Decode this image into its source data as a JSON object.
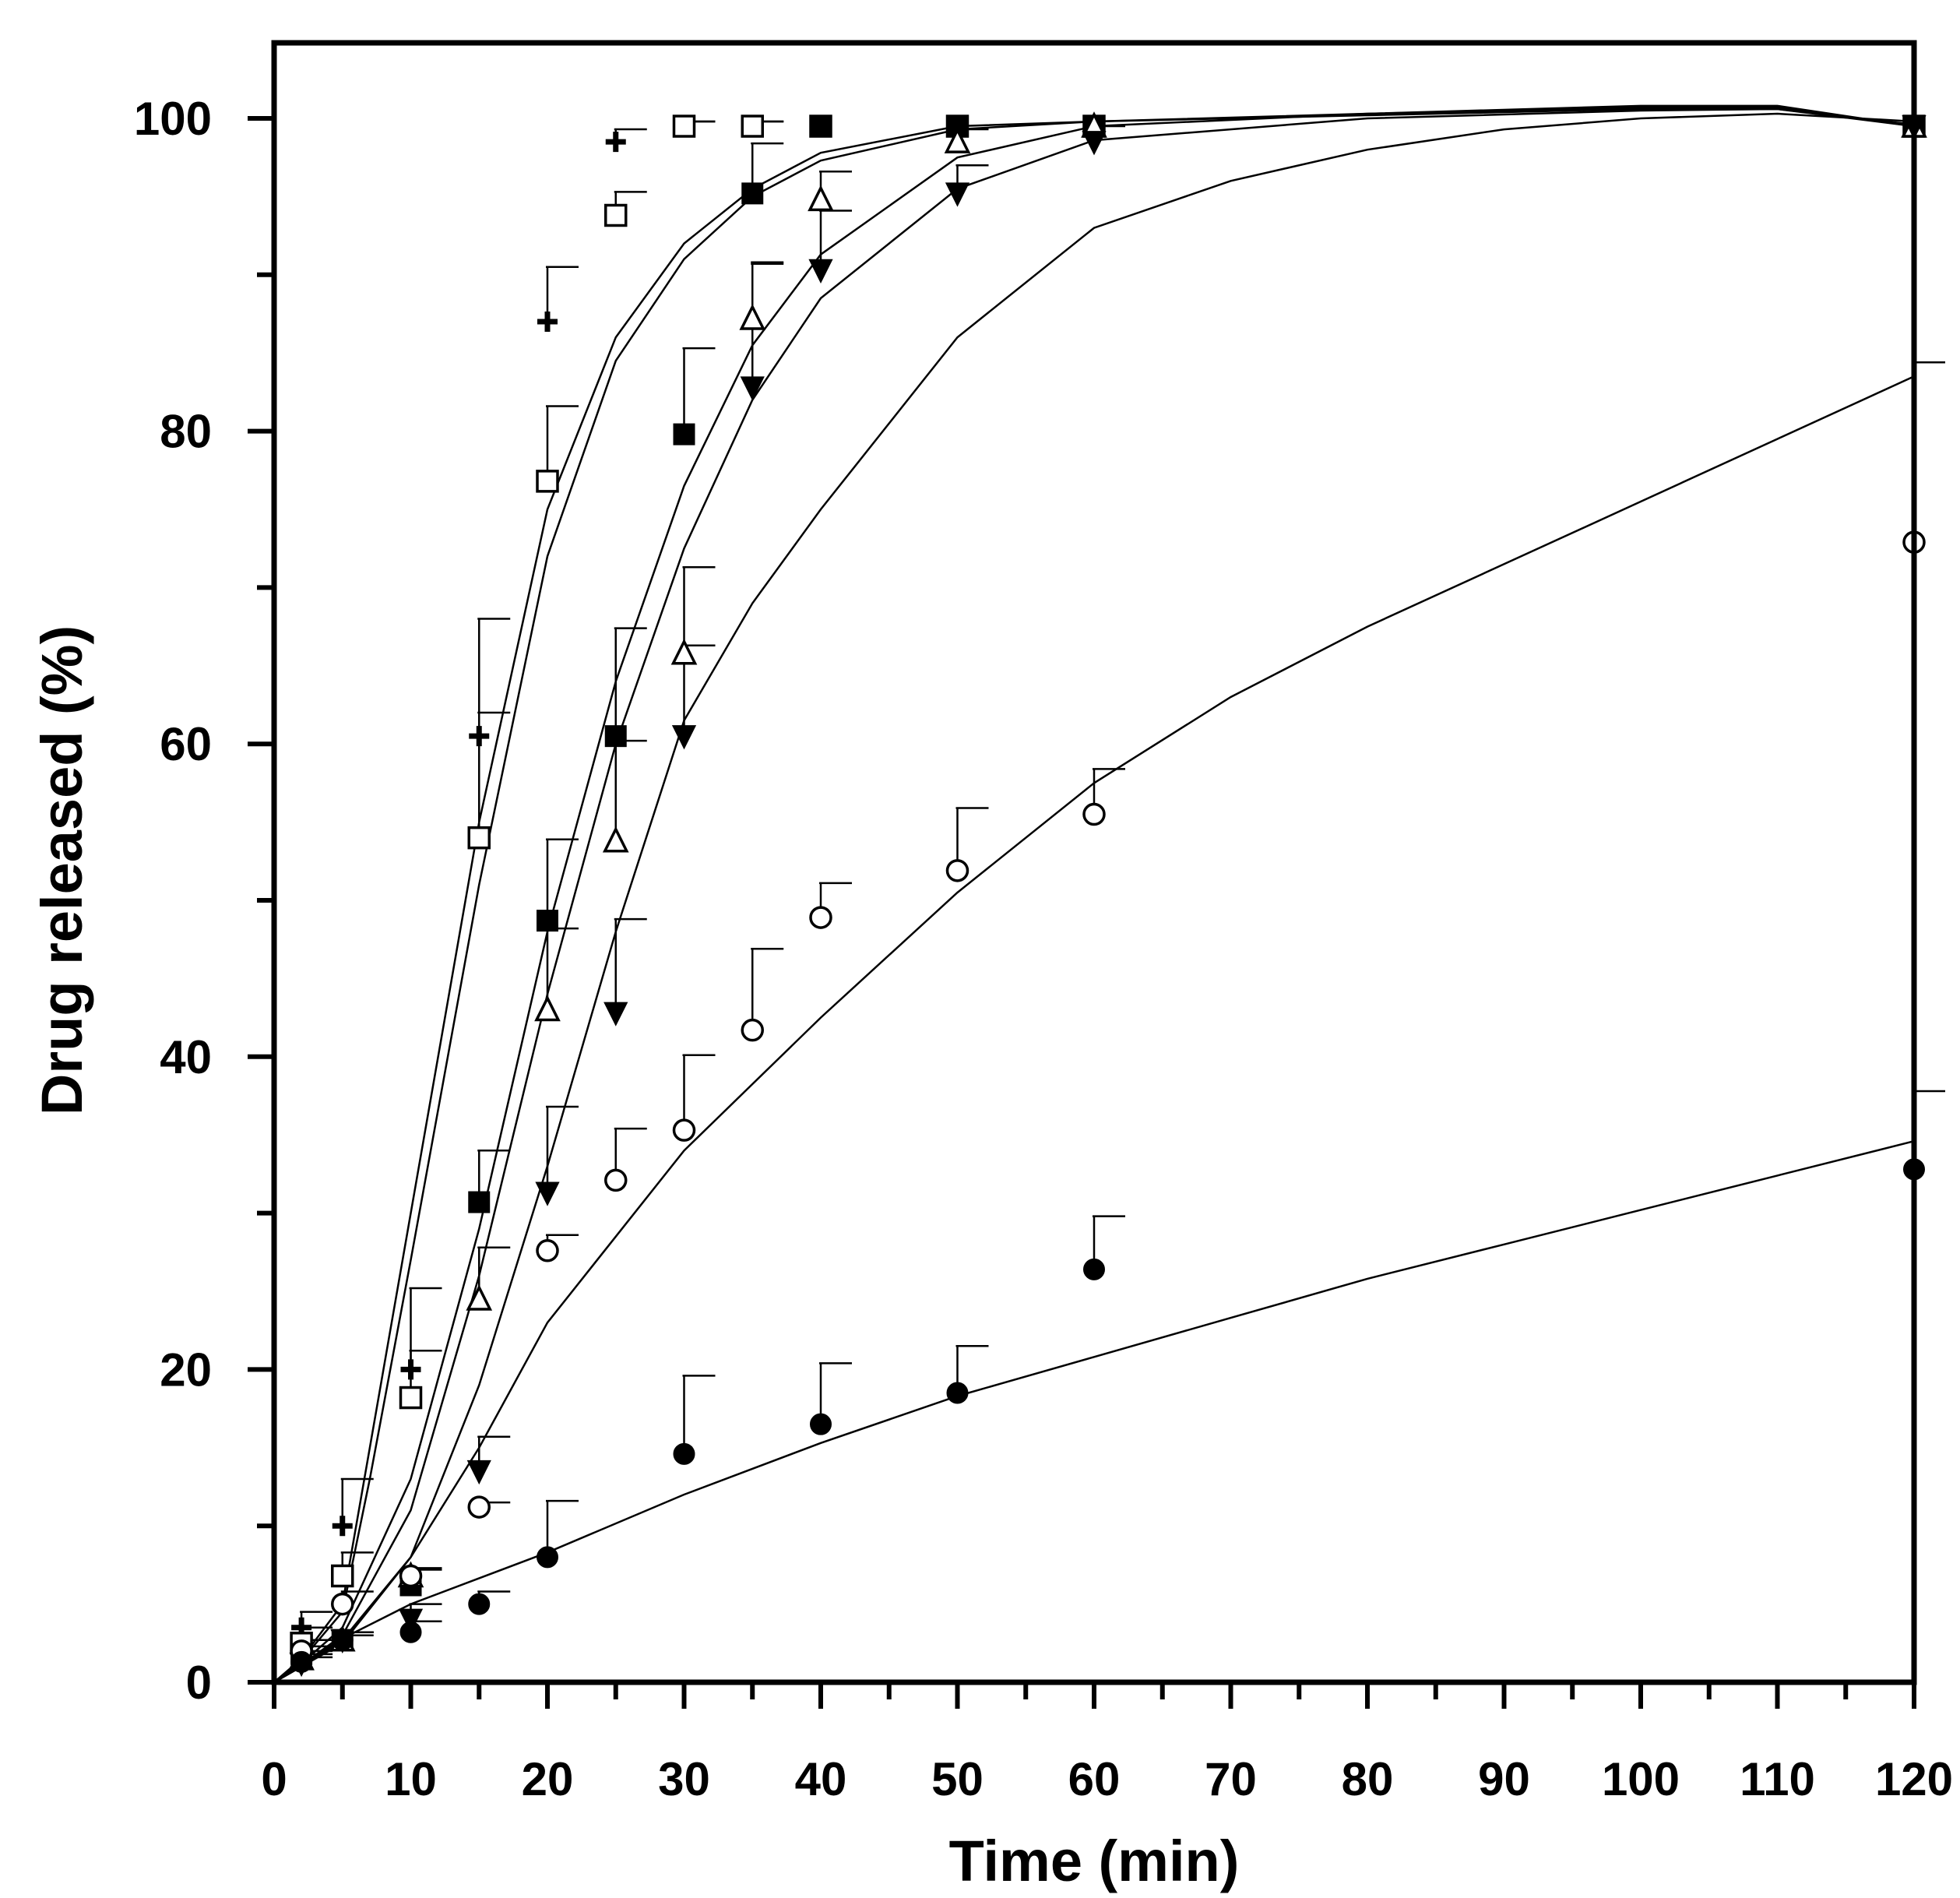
{
  "chart_data": {
    "type": "scatter",
    "title": "",
    "xlabel": "Time (min)",
    "ylabel": "Drug released (%)",
    "xlim": [
      0,
      120
    ],
    "ylim": [
      0,
      100
    ],
    "x_ticks": [
      0,
      10,
      20,
      30,
      40,
      50,
      60,
      70,
      80,
      90,
      100,
      110,
      120
    ],
    "y_ticks": [
      0,
      20,
      40,
      60,
      80,
      100
    ],
    "grid": false,
    "legend": "none",
    "series": [
      {
        "marker": "plus",
        "points": [
          [
            2,
            3.5
          ],
          [
            5,
            10
          ],
          [
            10,
            20
          ],
          [
            15,
            60.5
          ],
          [
            20,
            87
          ],
          [
            25,
            98.5
          ],
          [
            30,
            99.5
          ],
          [
            35,
            99.5
          ],
          [
            40,
            99.5
          ],
          [
            50,
            99.5
          ],
          [
            60,
            99.5
          ],
          [
            120,
            99.5
          ]
        ],
        "error": [
          1,
          3,
          5.2,
          7.5,
          3.5,
          0.8,
          0.3,
          0.3,
          0,
          0,
          0,
          0
        ]
      },
      {
        "marker": "open-square",
        "points": [
          [
            2,
            2.5
          ],
          [
            5,
            6.8
          ],
          [
            10,
            18.2
          ],
          [
            15,
            54
          ],
          [
            20,
            76.8
          ],
          [
            25,
            93.8
          ],
          [
            30,
            99.5
          ],
          [
            35,
            99.5
          ],
          [
            40,
            99.5
          ],
          [
            50,
            99.5
          ],
          [
            60,
            99.5
          ],
          [
            120,
            99.5
          ]
        ],
        "error": [
          1,
          1.5,
          3,
          8,
          4.8,
          1.5,
          0.3,
          0.3,
          0,
          0,
          0,
          0
        ]
      },
      {
        "marker": "filled-square",
        "points": [
          [
            2,
            1.8
          ],
          [
            5,
            2.7
          ],
          [
            10,
            6.2
          ],
          [
            15,
            30.7
          ],
          [
            20,
            48.7
          ],
          [
            25,
            60.5
          ],
          [
            30,
            79.8
          ],
          [
            35,
            95.2
          ],
          [
            40,
            99.5
          ],
          [
            50,
            99.5
          ],
          [
            60,
            99.5
          ],
          [
            120,
            99.5
          ]
        ],
        "error": [
          0.5,
          0.5,
          1,
          3.3,
          5.2,
          6.9,
          5.5,
          3.2,
          0,
          0,
          0,
          0
        ]
      },
      {
        "marker": "open-triangle-up",
        "points": [
          [
            2,
            1.5
          ],
          [
            5,
            2.7
          ],
          [
            10,
            6.8
          ],
          [
            15,
            24.5
          ],
          [
            20,
            43
          ],
          [
            25,
            53.8
          ],
          [
            30,
            65.8
          ],
          [
            35,
            87.2
          ],
          [
            40,
            94.8
          ],
          [
            50,
            98.5
          ],
          [
            60,
            99.5
          ],
          [
            120,
            99.5
          ]
        ],
        "error": [
          0.5,
          0.5,
          0.5,
          3.3,
          5.2,
          6.4,
          5.5,
          3.5,
          1.8,
          0.8,
          0,
          0
        ]
      },
      {
        "marker": "filled-triangle-down",
        "points": [
          [
            2,
            1.2
          ],
          [
            5,
            2.7
          ],
          [
            10,
            4
          ],
          [
            15,
            13.5
          ],
          [
            20,
            31.3
          ],
          [
            25,
            42.8
          ],
          [
            30,
            60.5
          ],
          [
            35,
            82.8
          ],
          [
            40,
            90.3
          ],
          [
            50,
            95.2
          ],
          [
            60,
            98.5
          ],
          [
            120,
            99.5
          ]
        ],
        "error": [
          0.4,
          0.3,
          1,
          2.2,
          5.5,
          6,
          5.8,
          8,
          3.8,
          1.8,
          1,
          0
        ]
      },
      {
        "marker": "open-circle",
        "points": [
          [
            2,
            2
          ],
          [
            5,
            5
          ],
          [
            10,
            6.8
          ],
          [
            15,
            11.2
          ],
          [
            20,
            27.6
          ],
          [
            25,
            32.1
          ],
          [
            30,
            35.3
          ],
          [
            35,
            41.7
          ],
          [
            40,
            48.9
          ],
          [
            50,
            51.9
          ],
          [
            60,
            55.5
          ],
          [
            120,
            72.9
          ]
        ],
        "error": [
          0.7,
          0.8,
          0.4,
          0.3,
          1,
          3.3,
          4.8,
          5.2,
          2.2,
          4,
          2.9,
          11.5
        ]
      },
      {
        "marker": "filled-circle",
        "points": [
          [
            2,
            1.3
          ],
          [
            5,
            2.7
          ],
          [
            10,
            3.2
          ],
          [
            15,
            5
          ],
          [
            20,
            8
          ],
          [
            30,
            14.6
          ],
          [
            40,
            16.5
          ],
          [
            50,
            18.5
          ],
          [
            60,
            26.4
          ],
          [
            120,
            32.8
          ]
        ],
        "error": [
          0.5,
          0.5,
          0.7,
          0.8,
          3.6,
          5,
          3.9,
          3,
          3.4,
          5
        ]
      }
    ],
    "fitted_curves": [
      {
        "points": [
          [
            0,
            0
          ],
          [
            2,
            1.5
          ],
          [
            5,
            5
          ],
          [
            7,
            15
          ],
          [
            10,
            30
          ],
          [
            15,
            55
          ],
          [
            20,
            75
          ],
          [
            25,
            86
          ],
          [
            30,
            92
          ],
          [
            35,
            95.5
          ],
          [
            40,
            97.8
          ],
          [
            50,
            99.5
          ],
          [
            60,
            99.8
          ],
          [
            80,
            100.2
          ],
          [
            100,
            100.6
          ],
          [
            110,
            100.6
          ],
          [
            120,
            99.5
          ]
        ]
      },
      {
        "points": [
          [
            0,
            0
          ],
          [
            2,
            1.4
          ],
          [
            5,
            4.5
          ],
          [
            7,
            13
          ],
          [
            10,
            27
          ],
          [
            15,
            51
          ],
          [
            20,
            72
          ],
          [
            25,
            84.5
          ],
          [
            30,
            91
          ],
          [
            35,
            95
          ],
          [
            40,
            97.3
          ],
          [
            50,
            99.3
          ],
          [
            60,
            99.8
          ],
          [
            80,
            100.3
          ],
          [
            100,
            100.8
          ],
          [
            110,
            100.8
          ],
          [
            120,
            99.5
          ]
        ]
      },
      {
        "points": [
          [
            0,
            0
          ],
          [
            2,
            1.2
          ],
          [
            5,
            3.5
          ],
          [
            10,
            13
          ],
          [
            15,
            29
          ],
          [
            20,
            48
          ],
          [
            25,
            64
          ],
          [
            30,
            76.5
          ],
          [
            35,
            85.5
          ],
          [
            40,
            91.3
          ],
          [
            50,
            97.5
          ],
          [
            60,
            99.5
          ],
          [
            80,
            100.3
          ],
          [
            100,
            100.7
          ],
          [
            110,
            100.7
          ],
          [
            120,
            99.5
          ]
        ]
      },
      {
        "points": [
          [
            0,
            0
          ],
          [
            2,
            1.1
          ],
          [
            5,
            3
          ],
          [
            10,
            11
          ],
          [
            15,
            26
          ],
          [
            20,
            44
          ],
          [
            25,
            60
          ],
          [
            30,
            72.5
          ],
          [
            35,
            82
          ],
          [
            40,
            88.5
          ],
          [
            50,
            95.5
          ],
          [
            60,
            98.6
          ],
          [
            80,
            100
          ],
          [
            100,
            100.5
          ],
          [
            110,
            100.6
          ],
          [
            120,
            99.6
          ]
        ]
      },
      {
        "points": [
          [
            0,
            0
          ],
          [
            2,
            1
          ],
          [
            5,
            2.7
          ],
          [
            10,
            8
          ],
          [
            15,
            19
          ],
          [
            20,
            33
          ],
          [
            25,
            48
          ],
          [
            30,
            61.5
          ],
          [
            35,
            69
          ],
          [
            40,
            75
          ],
          [
            50,
            86
          ],
          [
            60,
            93
          ],
          [
            70,
            96
          ],
          [
            80,
            98
          ],
          [
            90,
            99.3
          ],
          [
            100,
            100
          ],
          [
            110,
            100.3
          ],
          [
            120,
            99.8
          ]
        ]
      },
      {
        "points": [
          [
            0,
            0
          ],
          [
            2,
            1
          ],
          [
            5,
            2.5
          ],
          [
            10,
            8
          ],
          [
            15,
            15
          ],
          [
            20,
            23
          ],
          [
            25,
            28.5
          ],
          [
            30,
            34
          ],
          [
            40,
            42.5
          ],
          [
            50,
            50.5
          ],
          [
            60,
            57.5
          ],
          [
            70,
            63
          ],
          [
            80,
            67.5
          ],
          [
            90,
            71.5
          ],
          [
            100,
            75.5
          ],
          [
            110,
            79.5
          ],
          [
            120,
            83.5
          ]
        ]
      },
      {
        "points": [
          [
            0,
            0
          ],
          [
            5,
            2.8
          ],
          [
            10,
            5
          ],
          [
            20,
            8.3
          ],
          [
            30,
            12
          ],
          [
            40,
            15.3
          ],
          [
            50,
            18.3
          ],
          [
            60,
            20.8
          ],
          [
            70,
            23.3
          ],
          [
            80,
            25.8
          ],
          [
            90,
            28
          ],
          [
            100,
            30.2
          ],
          [
            110,
            32.4
          ],
          [
            120,
            34.6
          ]
        ]
      }
    ]
  }
}
